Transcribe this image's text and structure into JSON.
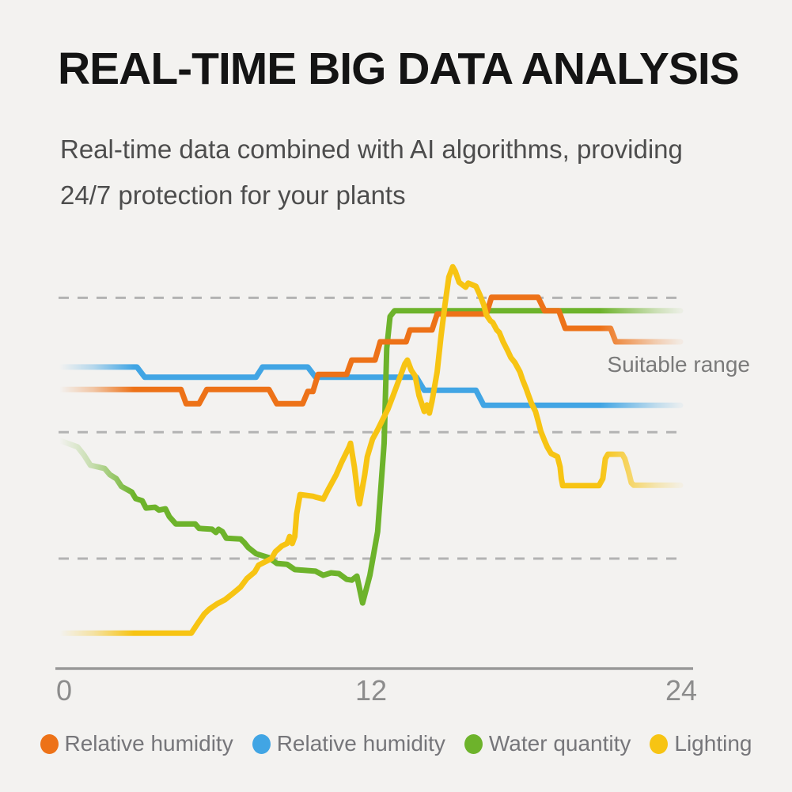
{
  "header": {
    "title": "REAL-TIME BIG DATA ANALYSIS",
    "subtitle_line1": "Real-time data combined with AI algorithms, providing",
    "subtitle_line2": "24/7 protection for your plants"
  },
  "chart_data": {
    "type": "line",
    "title": "",
    "xlabel": "",
    "ylabel": "",
    "x_ticks": [
      "0",
      "12",
      "24"
    ],
    "x_range": [
      0,
      24
    ],
    "y_range": [
      0,
      100
    ],
    "grid": "horizontal-dashed",
    "gridline_values": [
      91,
      58,
      27
    ],
    "legend_position": "bottom",
    "annotation": "Suitable range",
    "series": [
      {
        "name": "Relative humidity",
        "color": "#ED7218",
        "points": [
          [
            0,
            68.5
          ],
          [
            4.7,
            68.5
          ],
          [
            4.9,
            65
          ],
          [
            5.4,
            65
          ],
          [
            5.7,
            68.5
          ],
          [
            8.1,
            68.5
          ],
          [
            8.4,
            65
          ],
          [
            9.4,
            65
          ],
          [
            9.6,
            68
          ],
          [
            9.8,
            68
          ],
          [
            10.0,
            72.2
          ],
          [
            11.1,
            72.2
          ],
          [
            11.3,
            75.7
          ],
          [
            12.2,
            75.7
          ],
          [
            12.4,
            80.2
          ],
          [
            13.4,
            80.2
          ],
          [
            13.55,
            83.1
          ],
          [
            14.4,
            83.1
          ],
          [
            14.6,
            87
          ],
          [
            16.5,
            87
          ],
          [
            16.7,
            91.1
          ],
          [
            18.5,
            91.1
          ],
          [
            18.75,
            87.8
          ],
          [
            19.3,
            87.8
          ],
          [
            19.55,
            83.5
          ],
          [
            21.3,
            83.5
          ],
          [
            21.5,
            80.2
          ],
          [
            24,
            80.2
          ]
        ]
      },
      {
        "name": "Relative humidity",
        "color": "#41A5E4",
        "points": [
          [
            0,
            74
          ],
          [
            3.0,
            74
          ],
          [
            3.3,
            71.5
          ],
          [
            7.6,
            71.5
          ],
          [
            7.85,
            74
          ],
          [
            9.6,
            74
          ],
          [
            9.9,
            71.5
          ],
          [
            13.8,
            71.5
          ],
          [
            14.1,
            68.3
          ],
          [
            16.1,
            68.3
          ],
          [
            16.4,
            64.6
          ],
          [
            24,
            64.6
          ]
        ]
      },
      {
        "name": "Water quantity",
        "color": "#6DB32B",
        "points": [
          [
            0,
            56
          ],
          [
            0.7,
            54.4
          ],
          [
            0.95,
            52.4
          ],
          [
            1.2,
            49.9
          ],
          [
            1.75,
            49.1
          ],
          [
            1.95,
            47.6
          ],
          [
            2.2,
            46.6
          ],
          [
            2.4,
            44.7
          ],
          [
            2.8,
            43.3
          ],
          [
            2.95,
            41.7
          ],
          [
            3.2,
            41.2
          ],
          [
            3.35,
            39.4
          ],
          [
            3.7,
            39.6
          ],
          [
            3.85,
            38.9
          ],
          [
            4.1,
            39.2
          ],
          [
            4.25,
            37.3
          ],
          [
            4.5,
            35.5
          ],
          [
            5.25,
            35.5
          ],
          [
            5.4,
            34.4
          ],
          [
            5.9,
            34.2
          ],
          [
            6.05,
            33.4
          ],
          [
            6.15,
            34.2
          ],
          [
            6.3,
            33.6
          ],
          [
            6.45,
            32
          ],
          [
            7.0,
            31.8
          ],
          [
            7.15,
            30.9
          ],
          [
            7.3,
            29.7
          ],
          [
            7.6,
            28.2
          ],
          [
            8.1,
            27.2
          ],
          [
            8.4,
            25.8
          ],
          [
            8.8,
            25.6
          ],
          [
            9.1,
            24.3
          ],
          [
            9.9,
            23.9
          ],
          [
            10.2,
            22.9
          ],
          [
            10.5,
            23.5
          ],
          [
            10.8,
            23.3
          ],
          [
            11.1,
            21.9
          ],
          [
            11.3,
            21.7
          ],
          [
            11.5,
            22.7
          ],
          [
            11.62,
            19
          ],
          [
            11.72,
            16.1
          ],
          [
            12.0,
            22.9
          ],
          [
            12.3,
            33.6
          ],
          [
            12.55,
            55.3
          ],
          [
            12.65,
            78.6
          ],
          [
            12.78,
            86.4
          ],
          [
            12.95,
            87.8
          ],
          [
            24,
            87.8
          ]
        ]
      },
      {
        "name": "Lighting",
        "color": "#F7C413",
        "points": [
          [
            0,
            8.7
          ],
          [
            5.1,
            8.7
          ],
          [
            5.35,
            11.1
          ],
          [
            5.6,
            13.4
          ],
          [
            5.8,
            14.6
          ],
          [
            6.1,
            15.9
          ],
          [
            6.4,
            16.9
          ],
          [
            6.7,
            18.4
          ],
          [
            7.0,
            20.0
          ],
          [
            7.25,
            22.1
          ],
          [
            7.55,
            23.7
          ],
          [
            7.7,
            25.4
          ],
          [
            8.2,
            27.0
          ],
          [
            8.35,
            28.7
          ],
          [
            8.6,
            30.1
          ],
          [
            8.8,
            30.7
          ],
          [
            8.9,
            32.4
          ],
          [
            9.0,
            30.7
          ],
          [
            9.1,
            32.4
          ],
          [
            9.17,
            37.9
          ],
          [
            9.3,
            42.7
          ],
          [
            9.8,
            42.3
          ],
          [
            9.9,
            42.1
          ],
          [
            10.2,
            41.6
          ],
          [
            10.4,
            44.1
          ],
          [
            10.7,
            47.6
          ],
          [
            10.9,
            50.5
          ],
          [
            11.2,
            54.4
          ],
          [
            11.25,
            55.3
          ],
          [
            11.4,
            49.5
          ],
          [
            11.55,
            41.7
          ],
          [
            11.6,
            40.4
          ],
          [
            11.8,
            47.6
          ],
          [
            11.9,
            52.0
          ],
          [
            12.1,
            56.3
          ],
          [
            12.3,
            58.6
          ],
          [
            12.5,
            61.2
          ],
          [
            12.7,
            63.7
          ],
          [
            12.9,
            67.0
          ],
          [
            13.15,
            71.3
          ],
          [
            13.35,
            74.8
          ],
          [
            13.45,
            75.7
          ],
          [
            13.6,
            73.2
          ],
          [
            13.75,
            71.8
          ],
          [
            13.9,
            67.0
          ],
          [
            14.05,
            64.1
          ],
          [
            14.1,
            63.1
          ],
          [
            14.2,
            64.7
          ],
          [
            14.3,
            62.7
          ],
          [
            14.4,
            65.6
          ],
          [
            14.6,
            72.8
          ],
          [
            14.75,
            81.6
          ],
          [
            14.9,
            89.3
          ],
          [
            15.05,
            96.1
          ],
          [
            15.2,
            98.6
          ],
          [
            15.3,
            97.5
          ],
          [
            15.45,
            94.8
          ],
          [
            15.7,
            93.6
          ],
          [
            15.8,
            94.6
          ],
          [
            15.95,
            94.2
          ],
          [
            16.1,
            93.8
          ],
          [
            16.25,
            91.7
          ],
          [
            16.4,
            89.3
          ],
          [
            16.5,
            86.8
          ],
          [
            16.65,
            85.4
          ],
          [
            16.75,
            84.9
          ],
          [
            16.9,
            83.1
          ],
          [
            17.0,
            82.5
          ],
          [
            17.15,
            80.2
          ],
          [
            17.3,
            78.3
          ],
          [
            17.45,
            76.3
          ],
          [
            17.6,
            75.1
          ],
          [
            17.8,
            72.8
          ],
          [
            17.9,
            70.9
          ],
          [
            18.05,
            68.5
          ],
          [
            18.1,
            67.6
          ],
          [
            18.25,
            65.0
          ],
          [
            18.4,
            63.1
          ],
          [
            18.5,
            60.8
          ],
          [
            18.6,
            58.3
          ],
          [
            18.75,
            55.9
          ],
          [
            18.85,
            54.4
          ],
          [
            19.0,
            52.8
          ],
          [
            19.25,
            52.0
          ],
          [
            19.35,
            49.5
          ],
          [
            19.4,
            46.6
          ],
          [
            19.45,
            44.9
          ],
          [
            20.85,
            44.9
          ],
          [
            21.0,
            46.6
          ],
          [
            21.1,
            51.5
          ],
          [
            21.2,
            52.6
          ],
          [
            21.75,
            52.6
          ],
          [
            21.85,
            51.5
          ],
          [
            22.0,
            48.2
          ],
          [
            22.1,
            45.6
          ],
          [
            22.2,
            45.0
          ],
          [
            24,
            45.0
          ]
        ]
      }
    ]
  }
}
